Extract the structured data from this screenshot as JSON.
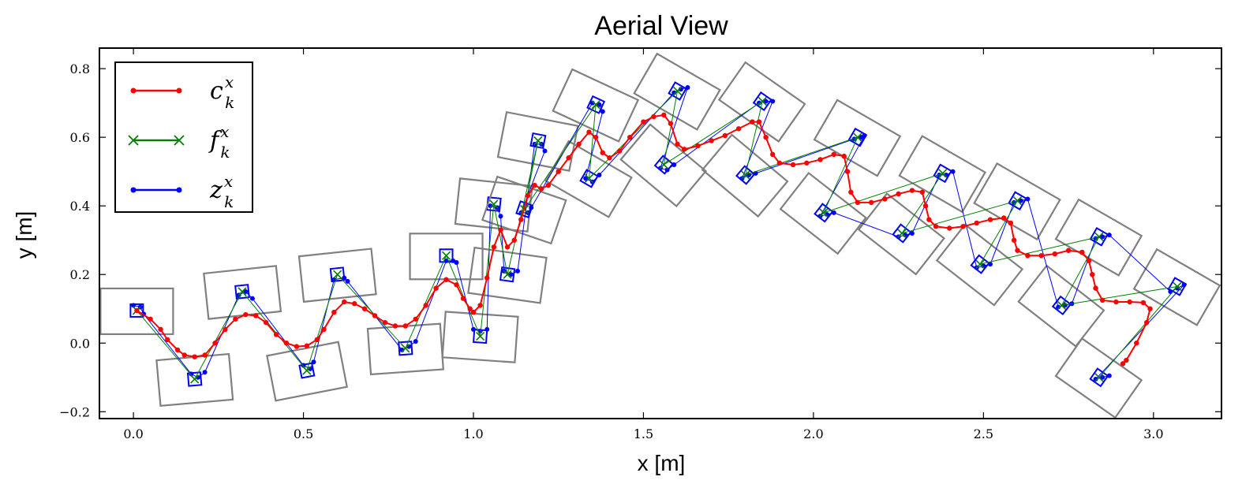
{
  "chart_data": {
    "type": "scatter",
    "title": "Aerial View",
    "xlabel": "x [m]",
    "ylabel": "y [m]",
    "xlim": [
      -0.1,
      3.2
    ],
    "ylim": [
      -0.22,
      0.86
    ],
    "xticks": [
      0.0,
      0.5,
      1.0,
      1.5,
      2.0,
      2.5,
      3.0
    ],
    "xtick_labels": [
      "0.0",
      "0.5",
      "1.0",
      "1.5",
      "2.0",
      "2.5",
      "3.0"
    ],
    "yticks": [
      -0.2,
      0.0,
      0.2,
      0.4,
      0.6,
      0.8
    ],
    "ytick_labels": [
      "−0.2",
      "0.0",
      "0.2",
      "0.4",
      "0.6",
      "0.8"
    ],
    "grid": false,
    "legend_position": "top-left",
    "legend": [
      {
        "symbol": "c",
        "sup": "x",
        "sub": "k",
        "color": "#ff0000",
        "marker": "dot"
      },
      {
        "symbol": "f",
        "sup": "x",
        "sub": "k",
        "color": "#008000",
        "marker": "cross"
      },
      {
        "symbol": "z",
        "sup": "x",
        "sub": "k",
        "color": "#0000ff",
        "marker": "dot"
      }
    ],
    "footsteps": [
      {
        "x": 0.01,
        "y": 0.095,
        "angle": 0
      },
      {
        "x": 0.18,
        "y": -0.105,
        "angle": 5
      },
      {
        "x": 0.32,
        "y": 0.15,
        "angle": 6
      },
      {
        "x": 0.51,
        "y": -0.08,
        "angle": 11
      },
      {
        "x": 0.6,
        "y": 0.2,
        "angle": 6
      },
      {
        "x": 0.8,
        "y": -0.015,
        "angle": 4
      },
      {
        "x": 0.92,
        "y": 0.255,
        "angle": 0
      },
      {
        "x": 1.02,
        "y": 0.02,
        "angle": -4
      },
      {
        "x": 1.06,
        "y": 0.405,
        "angle": -6
      },
      {
        "x": 1.1,
        "y": 0.2,
        "angle": -8
      },
      {
        "x": 1.19,
        "y": 0.59,
        "angle": -11
      },
      {
        "x": 1.15,
        "y": 0.39,
        "angle": -19
      },
      {
        "x": 1.36,
        "y": 0.695,
        "angle": -25
      },
      {
        "x": 1.34,
        "y": 0.48,
        "angle": -30
      },
      {
        "x": 1.6,
        "y": 0.735,
        "angle": -30
      },
      {
        "x": 1.56,
        "y": 0.52,
        "angle": -40
      },
      {
        "x": 1.85,
        "y": 0.705,
        "angle": -35
      },
      {
        "x": 1.8,
        "y": 0.49,
        "angle": -40
      },
      {
        "x": 2.13,
        "y": 0.6,
        "angle": -30
      },
      {
        "x": 2.03,
        "y": 0.38,
        "angle": -38
      },
      {
        "x": 2.38,
        "y": 0.495,
        "angle": -30
      },
      {
        "x": 2.26,
        "y": 0.32,
        "angle": -38
      },
      {
        "x": 2.6,
        "y": 0.415,
        "angle": -30
      },
      {
        "x": 2.49,
        "y": 0.23,
        "angle": -38
      },
      {
        "x": 2.84,
        "y": 0.31,
        "angle": -30
      },
      {
        "x": 2.73,
        "y": 0.11,
        "angle": -38
      },
      {
        "x": 3.07,
        "y": 0.165,
        "angle": -30
      },
      {
        "x": 2.84,
        "y": -0.1,
        "angle": -35
      }
    ],
    "series": [
      {
        "name": "c_k^x",
        "color": "#ff0000",
        "points": [
          [
            0.01,
            0.095
          ],
          [
            0.05,
            0.07
          ],
          [
            0.08,
            0.04
          ],
          [
            0.1,
            0.01
          ],
          [
            0.13,
            -0.02
          ],
          [
            0.15,
            -0.035
          ],
          [
            0.18,
            -0.04
          ],
          [
            0.21,
            -0.035
          ],
          [
            0.24,
            0.0
          ],
          [
            0.27,
            0.04
          ],
          [
            0.3,
            0.07
          ],
          [
            0.33,
            0.083
          ],
          [
            0.36,
            0.08
          ],
          [
            0.39,
            0.06
          ],
          [
            0.42,
            0.025
          ],
          [
            0.45,
            0.0
          ],
          [
            0.48,
            -0.01
          ],
          [
            0.51,
            -0.008
          ],
          [
            0.54,
            0.01
          ],
          [
            0.56,
            0.04
          ],
          [
            0.59,
            0.09
          ],
          [
            0.62,
            0.12
          ],
          [
            0.65,
            0.115
          ],
          [
            0.68,
            0.1
          ],
          [
            0.71,
            0.08
          ],
          [
            0.74,
            0.06
          ],
          [
            0.77,
            0.05
          ],
          [
            0.8,
            0.05
          ],
          [
            0.83,
            0.07
          ],
          [
            0.86,
            0.11
          ],
          [
            0.89,
            0.16
          ],
          [
            0.92,
            0.185
          ],
          [
            0.95,
            0.17
          ],
          [
            0.97,
            0.13
          ],
          [
            0.99,
            0.1
          ],
          [
            1.0,
            0.09
          ],
          [
            1.02,
            0.11
          ],
          [
            1.04,
            0.19
          ],
          [
            1.06,
            0.28
          ],
          [
            1.08,
            0.33
          ],
          [
            1.1,
            0.28
          ],
          [
            1.12,
            0.3
          ],
          [
            1.14,
            0.36
          ],
          [
            1.16,
            0.43
          ],
          [
            1.18,
            0.46
          ],
          [
            1.2,
            0.45
          ],
          [
            1.22,
            0.46
          ],
          [
            1.25,
            0.5
          ],
          [
            1.28,
            0.54
          ],
          [
            1.31,
            0.58
          ],
          [
            1.34,
            0.615
          ],
          [
            1.36,
            0.6
          ],
          [
            1.38,
            0.555
          ],
          [
            1.4,
            0.54
          ],
          [
            1.43,
            0.56
          ],
          [
            1.46,
            0.6
          ],
          [
            1.5,
            0.645
          ],
          [
            1.53,
            0.66
          ],
          [
            1.56,
            0.665
          ],
          [
            1.58,
            0.64
          ],
          [
            1.6,
            0.58
          ],
          [
            1.62,
            0.565
          ],
          [
            1.66,
            0.575
          ],
          [
            1.7,
            0.59
          ],
          [
            1.74,
            0.605
          ],
          [
            1.78,
            0.625
          ],
          [
            1.82,
            0.645
          ],
          [
            1.84,
            0.645
          ],
          [
            1.86,
            0.6
          ],
          [
            1.88,
            0.55
          ],
          [
            1.9,
            0.525
          ],
          [
            1.94,
            0.52
          ],
          [
            1.98,
            0.525
          ],
          [
            2.02,
            0.535
          ],
          [
            2.06,
            0.55
          ],
          [
            2.09,
            0.545
          ],
          [
            2.1,
            0.5
          ],
          [
            2.11,
            0.44
          ],
          [
            2.13,
            0.41
          ],
          [
            2.17,
            0.41
          ],
          [
            2.21,
            0.42
          ],
          [
            2.25,
            0.435
          ],
          [
            2.29,
            0.445
          ],
          [
            2.32,
            0.44
          ],
          [
            2.33,
            0.4
          ],
          [
            2.34,
            0.36
          ],
          [
            2.36,
            0.34
          ],
          [
            2.4,
            0.335
          ],
          [
            2.44,
            0.34
          ],
          [
            2.48,
            0.35
          ],
          [
            2.52,
            0.36
          ],
          [
            2.56,
            0.365
          ],
          [
            2.58,
            0.35
          ],
          [
            2.59,
            0.3
          ],
          [
            2.6,
            0.27
          ],
          [
            2.63,
            0.255
          ],
          [
            2.67,
            0.255
          ],
          [
            2.71,
            0.26
          ],
          [
            2.75,
            0.27
          ],
          [
            2.79,
            0.265
          ],
          [
            2.81,
            0.24
          ],
          [
            2.82,
            0.2
          ],
          [
            2.83,
            0.16
          ],
          [
            2.85,
            0.125
          ],
          [
            2.89,
            0.12
          ],
          [
            2.93,
            0.12
          ],
          [
            2.97,
            0.118
          ],
          [
            2.99,
            0.1
          ],
          [
            2.98,
            0.06
          ],
          [
            2.95,
            0.0
          ],
          [
            2.92,
            -0.05
          ],
          [
            2.91,
            -0.06
          ]
        ]
      },
      {
        "name": "f_k^x",
        "color": "#008000",
        "points": [
          [
            0.01,
            0.095
          ],
          [
            0.18,
            -0.105
          ],
          [
            0.32,
            0.15
          ],
          [
            0.51,
            -0.08
          ],
          [
            0.6,
            0.2
          ],
          [
            0.8,
            -0.015
          ],
          [
            0.92,
            0.255
          ],
          [
            1.02,
            0.02
          ],
          [
            1.06,
            0.405
          ],
          [
            1.1,
            0.2
          ],
          [
            1.19,
            0.59
          ],
          [
            1.15,
            0.39
          ],
          [
            1.36,
            0.695
          ],
          [
            1.34,
            0.48
          ],
          [
            1.6,
            0.735
          ],
          [
            1.56,
            0.52
          ],
          [
            1.85,
            0.705
          ],
          [
            1.8,
            0.49
          ],
          [
            2.13,
            0.6
          ],
          [
            2.03,
            0.38
          ],
          [
            2.38,
            0.495
          ],
          [
            2.26,
            0.32
          ],
          [
            2.6,
            0.415
          ],
          [
            2.49,
            0.23
          ],
          [
            2.84,
            0.31
          ],
          [
            2.73,
            0.11
          ],
          [
            3.07,
            0.165
          ],
          [
            2.84,
            -0.1
          ]
        ]
      },
      {
        "name": "z_k^x",
        "color": "#0000ff",
        "points": [
          [
            0.0,
            0.11
          ],
          [
            0.02,
            0.105
          ],
          [
            0.03,
            0.085
          ],
          [
            0.17,
            -0.09
          ],
          [
            0.19,
            -0.1
          ],
          [
            0.21,
            -0.085
          ],
          [
            0.31,
            0.14
          ],
          [
            0.33,
            0.15
          ],
          [
            0.35,
            0.13
          ],
          [
            0.5,
            -0.065
          ],
          [
            0.52,
            -0.075
          ],
          [
            0.53,
            -0.055
          ],
          [
            0.59,
            0.185
          ],
          [
            0.62,
            0.19
          ],
          [
            0.63,
            0.18
          ],
          [
            0.79,
            -0.02
          ],
          [
            0.81,
            -0.01
          ],
          [
            0.83,
            0.005
          ],
          [
            0.92,
            0.24
          ],
          [
            0.94,
            0.24
          ],
          [
            0.95,
            0.235
          ],
          [
            1.0,
            0.04
          ],
          [
            1.02,
            0.035
          ],
          [
            1.04,
            0.04
          ],
          [
            1.05,
            0.4
          ],
          [
            1.07,
            0.395
          ],
          [
            1.08,
            0.37
          ],
          [
            1.09,
            0.21
          ],
          [
            1.11,
            0.2
          ],
          [
            1.13,
            0.21
          ],
          [
            1.18,
            0.58
          ],
          [
            1.2,
            0.58
          ],
          [
            1.21,
            0.56
          ],
          [
            1.14,
            0.38
          ],
          [
            1.16,
            0.38
          ],
          [
            1.17,
            0.395
          ],
          [
            1.35,
            0.7
          ],
          [
            1.37,
            0.695
          ],
          [
            1.38,
            0.675
          ],
          [
            1.33,
            0.48
          ],
          [
            1.35,
            0.47
          ],
          [
            1.37,
            0.49
          ],
          [
            1.59,
            0.73
          ],
          [
            1.61,
            0.74
          ],
          [
            1.63,
            0.745
          ],
          [
            1.55,
            0.51
          ],
          [
            1.57,
            0.505
          ],
          [
            1.59,
            0.52
          ],
          [
            1.84,
            0.7
          ],
          [
            1.86,
            0.705
          ],
          [
            1.88,
            0.705
          ],
          [
            1.79,
            0.48
          ],
          [
            1.81,
            0.49
          ],
          [
            1.83,
            0.495
          ],
          [
            2.12,
            0.595
          ],
          [
            2.14,
            0.6
          ],
          [
            2.15,
            0.605
          ],
          [
            2.02,
            0.37
          ],
          [
            2.04,
            0.375
          ],
          [
            2.06,
            0.38
          ],
          [
            2.25,
            0.31
          ],
          [
            2.27,
            0.315
          ],
          [
            2.29,
            0.32
          ],
          [
            2.37,
            0.49
          ],
          [
            2.39,
            0.49
          ],
          [
            2.41,
            0.5
          ],
          [
            2.48,
            0.22
          ],
          [
            2.5,
            0.225
          ],
          [
            2.52,
            0.23
          ],
          [
            2.59,
            0.41
          ],
          [
            2.61,
            0.415
          ],
          [
            2.63,
            0.42
          ],
          [
            2.72,
            0.105
          ],
          [
            2.74,
            0.11
          ],
          [
            2.76,
            0.115
          ],
          [
            2.83,
            0.305
          ],
          [
            2.85,
            0.31
          ],
          [
            2.87,
            0.315
          ],
          [
            3.05,
            0.15
          ],
          [
            3.07,
            0.16
          ],
          [
            3.09,
            0.17
          ],
          [
            2.83,
            -0.105
          ],
          [
            2.85,
            -0.1
          ],
          [
            2.87,
            -0.095
          ]
        ]
      }
    ]
  }
}
